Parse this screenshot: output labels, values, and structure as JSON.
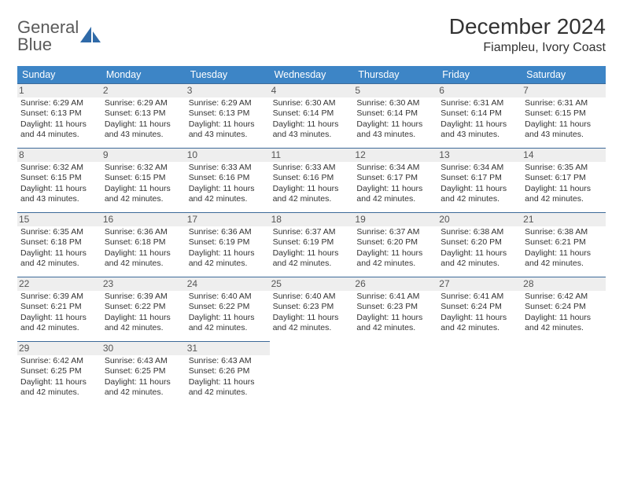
{
  "brand": {
    "word1": "General",
    "word2": "Blue"
  },
  "title": "December 2024",
  "location": "Fiampleu, Ivory Coast",
  "colors": {
    "header_bg": "#3d85c6",
    "header_text": "#ffffff",
    "daynum_bg": "#eeeeee",
    "daynum_text": "#555555",
    "rule": "#3d6a99",
    "logo_gray": "#6d6d6d",
    "logo_blue": "#2f6aa8"
  },
  "day_names": [
    "Sunday",
    "Monday",
    "Tuesday",
    "Wednesday",
    "Thursday",
    "Friday",
    "Saturday"
  ],
  "weeks": [
    [
      {
        "n": "1",
        "sr": "6:29 AM",
        "ss": "6:13 PM",
        "dl": "11 hours and 44 minutes."
      },
      {
        "n": "2",
        "sr": "6:29 AM",
        "ss": "6:13 PM",
        "dl": "11 hours and 43 minutes."
      },
      {
        "n": "3",
        "sr": "6:29 AM",
        "ss": "6:13 PM",
        "dl": "11 hours and 43 minutes."
      },
      {
        "n": "4",
        "sr": "6:30 AM",
        "ss": "6:14 PM",
        "dl": "11 hours and 43 minutes."
      },
      {
        "n": "5",
        "sr": "6:30 AM",
        "ss": "6:14 PM",
        "dl": "11 hours and 43 minutes."
      },
      {
        "n": "6",
        "sr": "6:31 AM",
        "ss": "6:14 PM",
        "dl": "11 hours and 43 minutes."
      },
      {
        "n": "7",
        "sr": "6:31 AM",
        "ss": "6:15 PM",
        "dl": "11 hours and 43 minutes."
      }
    ],
    [
      {
        "n": "8",
        "sr": "6:32 AM",
        "ss": "6:15 PM",
        "dl": "11 hours and 43 minutes."
      },
      {
        "n": "9",
        "sr": "6:32 AM",
        "ss": "6:15 PM",
        "dl": "11 hours and 42 minutes."
      },
      {
        "n": "10",
        "sr": "6:33 AM",
        "ss": "6:16 PM",
        "dl": "11 hours and 42 minutes."
      },
      {
        "n": "11",
        "sr": "6:33 AM",
        "ss": "6:16 PM",
        "dl": "11 hours and 42 minutes."
      },
      {
        "n": "12",
        "sr": "6:34 AM",
        "ss": "6:17 PM",
        "dl": "11 hours and 42 minutes."
      },
      {
        "n": "13",
        "sr": "6:34 AM",
        "ss": "6:17 PM",
        "dl": "11 hours and 42 minutes."
      },
      {
        "n": "14",
        "sr": "6:35 AM",
        "ss": "6:17 PM",
        "dl": "11 hours and 42 minutes."
      }
    ],
    [
      {
        "n": "15",
        "sr": "6:35 AM",
        "ss": "6:18 PM",
        "dl": "11 hours and 42 minutes."
      },
      {
        "n": "16",
        "sr": "6:36 AM",
        "ss": "6:18 PM",
        "dl": "11 hours and 42 minutes."
      },
      {
        "n": "17",
        "sr": "6:36 AM",
        "ss": "6:19 PM",
        "dl": "11 hours and 42 minutes."
      },
      {
        "n": "18",
        "sr": "6:37 AM",
        "ss": "6:19 PM",
        "dl": "11 hours and 42 minutes."
      },
      {
        "n": "19",
        "sr": "6:37 AM",
        "ss": "6:20 PM",
        "dl": "11 hours and 42 minutes."
      },
      {
        "n": "20",
        "sr": "6:38 AM",
        "ss": "6:20 PM",
        "dl": "11 hours and 42 minutes."
      },
      {
        "n": "21",
        "sr": "6:38 AM",
        "ss": "6:21 PM",
        "dl": "11 hours and 42 minutes."
      }
    ],
    [
      {
        "n": "22",
        "sr": "6:39 AM",
        "ss": "6:21 PM",
        "dl": "11 hours and 42 minutes."
      },
      {
        "n": "23",
        "sr": "6:39 AM",
        "ss": "6:22 PM",
        "dl": "11 hours and 42 minutes."
      },
      {
        "n": "24",
        "sr": "6:40 AM",
        "ss": "6:22 PM",
        "dl": "11 hours and 42 minutes."
      },
      {
        "n": "25",
        "sr": "6:40 AM",
        "ss": "6:23 PM",
        "dl": "11 hours and 42 minutes."
      },
      {
        "n": "26",
        "sr": "6:41 AM",
        "ss": "6:23 PM",
        "dl": "11 hours and 42 minutes."
      },
      {
        "n": "27",
        "sr": "6:41 AM",
        "ss": "6:24 PM",
        "dl": "11 hours and 42 minutes."
      },
      {
        "n": "28",
        "sr": "6:42 AM",
        "ss": "6:24 PM",
        "dl": "11 hours and 42 minutes."
      }
    ],
    [
      {
        "n": "29",
        "sr": "6:42 AM",
        "ss": "6:25 PM",
        "dl": "11 hours and 42 minutes."
      },
      {
        "n": "30",
        "sr": "6:43 AM",
        "ss": "6:25 PM",
        "dl": "11 hours and 42 minutes."
      },
      {
        "n": "31",
        "sr": "6:43 AM",
        "ss": "6:26 PM",
        "dl": "11 hours and 42 minutes."
      },
      null,
      null,
      null,
      null
    ]
  ],
  "labels": {
    "sunrise": "Sunrise:",
    "sunset": "Sunset:",
    "daylight": "Daylight:"
  }
}
